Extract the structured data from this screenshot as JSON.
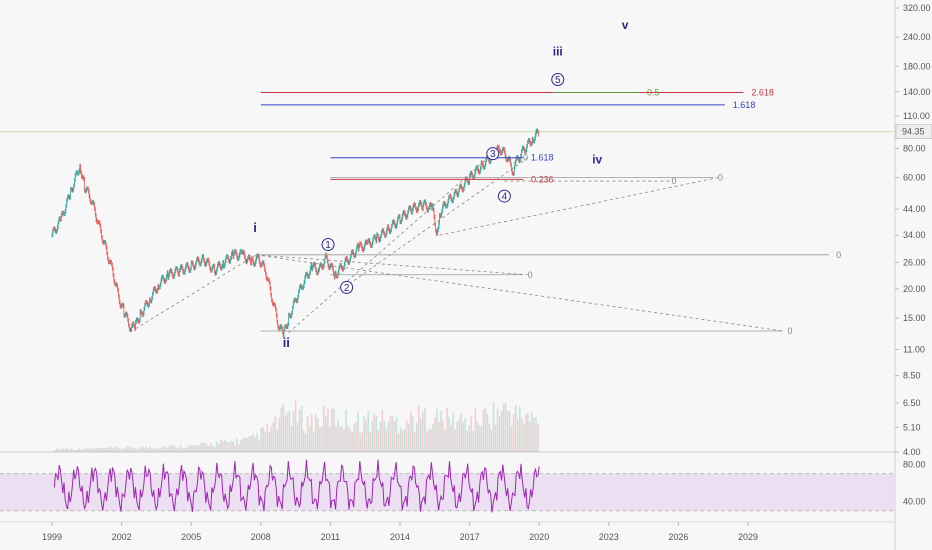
{
  "chart_data": {
    "type": "line",
    "y_scale": "log",
    "grid": false,
    "x_ticks": [
      "1999",
      "2002",
      "2005",
      "2008",
      "2011",
      "2014",
      "2017",
      "2020",
      "2023",
      "2026",
      "2029"
    ],
    "y_ticks": [
      "320.00",
      "240.00",
      "180.00",
      "140.00",
      "110.00",
      "80.00",
      "60.00",
      "44.00",
      "34.00",
      "26.00",
      "20.00",
      "15.00",
      "11.00",
      "8.50",
      "6.50",
      "5.10",
      "4.00"
    ],
    "last_price_label": "94.35",
    "price_series": {
      "x": [
        1999.0,
        1999.4,
        1999.8,
        2000.2,
        2000.4,
        2000.7,
        2001.0,
        2001.3,
        2001.6,
        2001.9,
        2002.1,
        2002.4,
        2002.6,
        2002.8,
        2003.2,
        2003.6,
        2004.0,
        2004.5,
        2005.0,
        2005.5,
        2006.0,
        2006.4,
        2006.8,
        2007.2,
        2007.6,
        2007.9,
        2008.2,
        2008.5,
        2008.8,
        2009.0,
        2009.2,
        2009.5,
        2009.8,
        2010.2,
        2010.5,
        2010.8,
        2011.2,
        2011.5,
        2011.8,
        2012.2,
        2012.6,
        2013.0,
        2013.5,
        2014.0,
        2014.5,
        2015.0,
        2015.4,
        2015.6,
        2015.7,
        2016.0,
        2016.5,
        2017.0,
        2017.5,
        2018.0,
        2018.3,
        2018.6,
        2018.9,
        2019.0,
        2019.3,
        2019.7,
        2020.0
      ],
      "y": [
        34,
        40,
        52,
        68,
        55,
        48,
        38,
        30,
        24,
        18,
        16,
        13.5,
        14,
        15.5,
        18,
        21,
        23,
        24,
        25,
        27,
        24,
        26,
        28,
        28,
        26,
        27,
        24,
        18,
        13.5,
        13,
        15,
        18,
        21,
        25,
        24,
        27,
        23,
        25,
        27,
        30,
        31,
        33,
        36,
        40,
        44,
        46,
        44,
        34,
        42,
        47,
        52,
        60,
        67,
        75,
        80,
        74,
        63,
        70,
        78,
        88,
        94.35
      ]
    },
    "volume_series": {
      "x": [
        1999,
        2002,
        2005,
        2007.5,
        2008.5,
        2009.2,
        2010,
        2011,
        2012,
        2013,
        2014,
        2015,
        2016,
        2017,
        2018,
        2018.6,
        2019,
        2019.5,
        2020
      ],
      "y": [
        0.3,
        0.4,
        0.6,
        1.2,
        2.5,
        4,
        3,
        3.5,
        3,
        3.2,
        3,
        3.5,
        3.2,
        3,
        3.8,
        4.2,
        3.6,
        3.4,
        3
      ]
    },
    "rsi_series": {
      "y_ticks": [
        "80.00",
        "40.00"
      ],
      "overbought": 70,
      "oversold": 30
    },
    "wave_labels": [
      {
        "text": "i",
        "x": 2007.75,
        "y": 35
      },
      {
        "text": "ii",
        "x": 2009.1,
        "y": 11.3
      },
      {
        "text": "iii",
        "x": 2020.8,
        "y": 200
      },
      {
        "text": "iv",
        "x": 2022.5,
        "y": 69
      },
      {
        "text": "v",
        "x": 2023.7,
        "y": 260
      }
    ],
    "circle_labels": [
      {
        "text": "1",
        "x": 2010.9,
        "y": 31
      },
      {
        "text": "2",
        "x": 2011.7,
        "y": 20.3
      },
      {
        "text": "3",
        "x": 2018.0,
        "y": 76
      },
      {
        "text": "4",
        "x": 2018.5,
        "y": 50
      },
      {
        "text": "5",
        "x": 2020.8,
        "y": 158
      }
    ],
    "fib_levels": [
      {
        "label": "2.618",
        "y": 139,
        "x1": 2008,
        "x2": 2028.8,
        "color": "#cc3344"
      },
      {
        "label": "1.618",
        "y": 123,
        "x1": 2008,
        "x2": 2028,
        "color": "#3344cc"
      },
      {
        "label": "0.5",
        "y": 139,
        "x1": 2020.6,
        "x2": 2024.3,
        "color": "#5a9a3a"
      },
      {
        "label": "1.618",
        "y": 73,
        "x1": 2011,
        "x2": 2019.3,
        "color": "#3344cc"
      },
      {
        "label": "0.236",
        "y": 59,
        "x1": 2011,
        "x2": 2019.3,
        "color": "#cc3344"
      }
    ],
    "zero_markers": [
      {
        "label": "0",
        "x": 2027.7,
        "y": 60
      },
      {
        "label": "0",
        "x": 2019.3,
        "y": 73
      },
      {
        "label": "0",
        "x": 2025.7,
        "y": 58
      },
      {
        "label": "0",
        "x": 2032.8,
        "y": 28
      },
      {
        "label": "0",
        "x": 2019.5,
        "y": 23
      },
      {
        "label": "0",
        "x": 2030.7,
        "y": 13.2
      }
    ]
  },
  "colors": {
    "price": "#555555",
    "up": "#26a69a",
    "down": "#ef5350",
    "rsi": "#9c27b0",
    "rsi_band": "#e8d8f0",
    "wave_text": "#2a2a8c",
    "axis_text": "#555555"
  }
}
